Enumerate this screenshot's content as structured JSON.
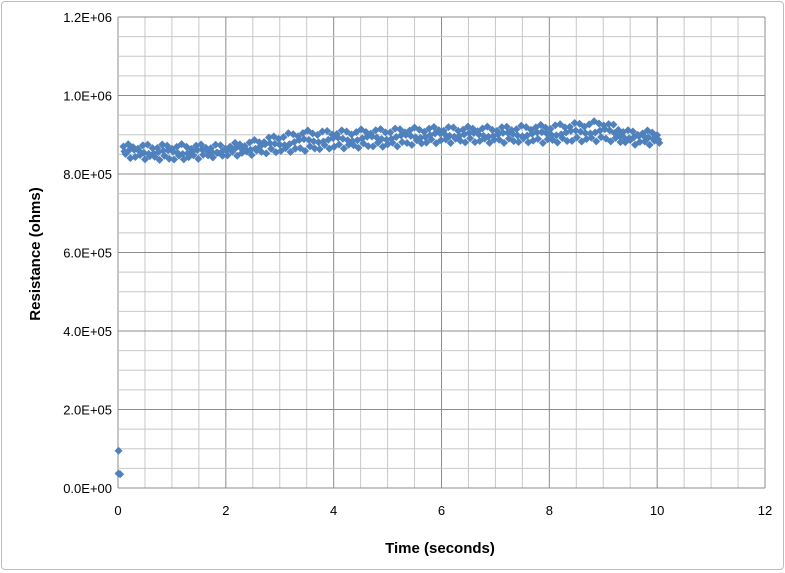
{
  "chart_data": {
    "type": "scatter",
    "title": "",
    "xlabel": "Time (seconds)",
    "ylabel": "Resistance (ohms)",
    "xlim": [
      0,
      12
    ],
    "ylim": [
      0,
      1200000
    ],
    "x_ticks": [
      "0",
      "2",
      "4",
      "6",
      "8",
      "10",
      "12"
    ],
    "y_ticks": [
      "0.0E+00",
      "2.0E+05",
      "4.0E+05",
      "6.0E+05",
      "8.0E+05",
      "1.0E+06",
      "1.2E+06"
    ],
    "grid": true,
    "minor_grid": true,
    "legend": "none",
    "marker": "diamond",
    "series_color": "#4f81bd",
    "series": [
      {
        "name": "",
        "trend": {
          "x": [
            0.1,
            1,
            2,
            2.5,
            3,
            3.5,
            4,
            5,
            6,
            7,
            8,
            9,
            9.5,
            10
          ],
          "upper": [
            870000,
            870000,
            870000,
            880000,
            895000,
            905000,
            905000,
            910000,
            915000,
            915000,
            920000,
            930000,
            905000,
            905000
          ],
          "lower": [
            845000,
            840000,
            850000,
            855000,
            860000,
            865000,
            870000,
            875000,
            885000,
            885000,
            885000,
            890000,
            880000,
            880000
          ]
        },
        "outliers": [
          [
            0.01,
            95000
          ],
          [
            0.01,
            37000
          ],
          [
            0.04,
            35000
          ]
        ]
      }
    ]
  }
}
